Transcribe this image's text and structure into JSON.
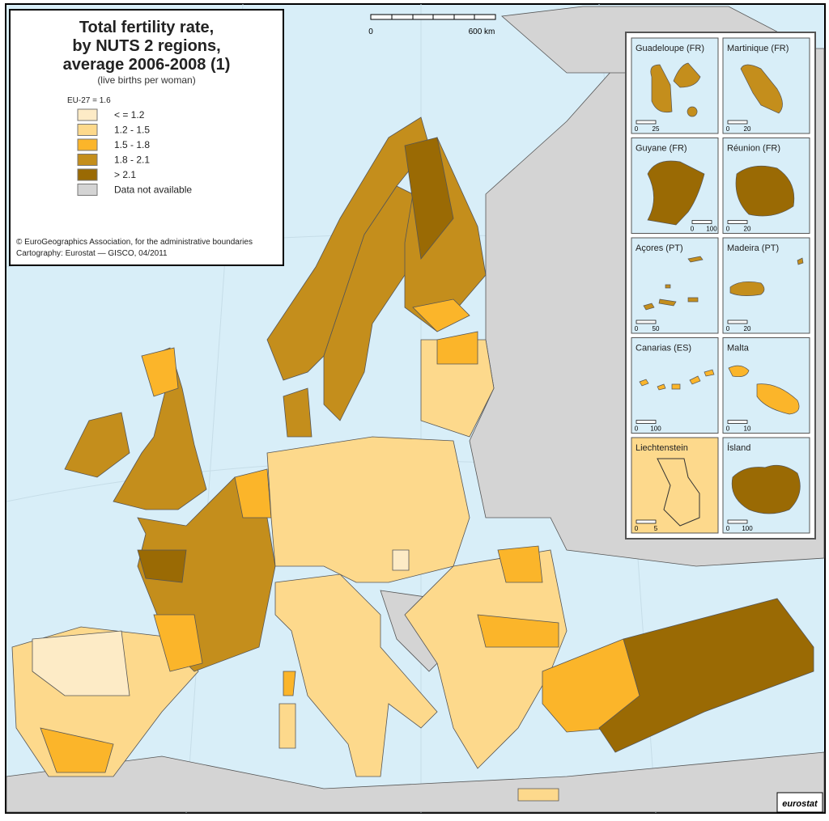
{
  "map": {
    "title_lines": [
      "Total fertility rate,",
      "by NUTS 2 regions,",
      "average 2006-2008 (1)"
    ],
    "subtitle": "(live births per woman)",
    "eu_average": "EU-27 = 1.6",
    "legend": [
      {
        "label": "< = 1.2",
        "color": "#fdebc6"
      },
      {
        "label": "1.2 - 1.5",
        "color": "#fdd98c"
      },
      {
        "label": "1.5 - 1.8",
        "color": "#fbb52a"
      },
      {
        "label": "1.8 - 2.1",
        "color": "#c48e1c"
      },
      {
        "label": "> 2.1",
        "color": "#9a6a04"
      },
      {
        "label": "Data not available",
        "color": "#d4d4d4"
      }
    ],
    "credits": [
      "© EuroGeographics Association, for the administrative boundaries",
      "Cartography: Eurostat — GISCO, 04/2011"
    ],
    "scale_bar": [
      "0",
      "600 km"
    ],
    "insets": [
      {
        "name": "Guadeloupe (FR)",
        "scale": [
          0,
          25
        ]
      },
      {
        "name": "Martinique (FR)",
        "scale": [
          0,
          20
        ]
      },
      {
        "name": "Guyane (FR)",
        "scale": [
          0,
          100
        ]
      },
      {
        "name": "Réunion (FR)",
        "scale": [
          0,
          20
        ]
      },
      {
        "name": "Açores (PT)",
        "scale": [
          0,
          50
        ]
      },
      {
        "name": "Madeira (PT)",
        "scale": [
          0,
          20
        ]
      },
      {
        "name": "Canarias (ES)",
        "scale": [
          0,
          100
        ]
      },
      {
        "name": "Malta",
        "scale": [
          0,
          10
        ]
      },
      {
        "name": "Liechtenstein",
        "scale": [
          0,
          5
        ]
      },
      {
        "name": "Ísland",
        "scale": [
          0,
          100
        ]
      }
    ],
    "logo": "eurostat"
  }
}
